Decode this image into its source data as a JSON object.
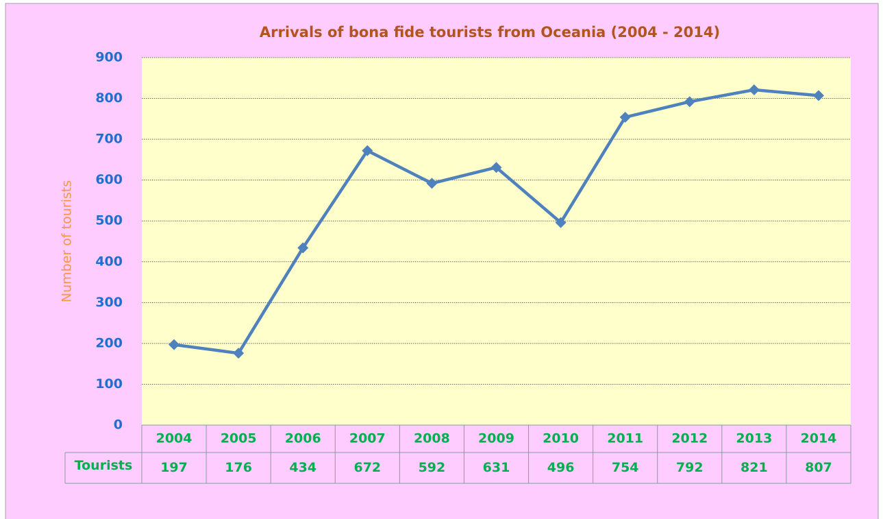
{
  "chart_data": {
    "type": "line",
    "title": "Arrivals of bona fide tourists from Oceania (2004 - 2014)",
    "y_label": "Number of tourists",
    "categories": [
      "2004",
      "2005",
      "2006",
      "2007",
      "2008",
      "2009",
      "2010",
      "2011",
      "2012",
      "2013",
      "2014"
    ],
    "series": [
      {
        "name": "Tourists",
        "color": "#4f81bd",
        "values": [
          197,
          176,
          434,
          672,
          592,
          631,
          496,
          754,
          792,
          821,
          807
        ]
      }
    ],
    "ylim": [
      0,
      900
    ],
    "yticks": [
      0,
      100,
      200,
      300,
      400,
      500,
      600,
      700,
      800,
      900
    ],
    "grid": true
  }
}
